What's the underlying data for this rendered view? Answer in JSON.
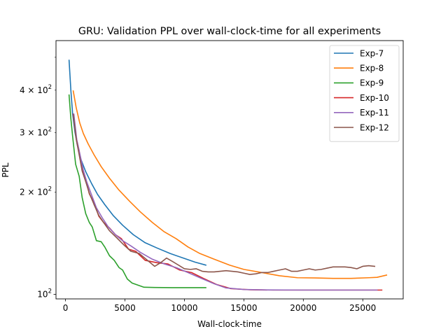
{
  "chart_data": {
    "type": "line",
    "title": "GRU: Validation PPL over wall-clock-time for all experiments",
    "xlabel": "Wall-clock-time",
    "ylabel": "PPL",
    "xlim": [
      -800,
      28400
    ],
    "ylim": [
      97,
      560
    ],
    "yscale": "log",
    "x_ticks": [
      {
        "value": 0,
        "label": "0"
      },
      {
        "value": 5000,
        "label": "5000"
      },
      {
        "value": 10000,
        "label": "10000"
      },
      {
        "value": 15000,
        "label": "15000"
      },
      {
        "value": 20000,
        "label": "20000"
      },
      {
        "value": 25000,
        "label": "25000"
      }
    ],
    "y_ticks": [
      {
        "value": 100,
        "base": "10",
        "exp": "2",
        "major": true
      },
      {
        "value": 200,
        "base": "2 × 10",
        "exp": "2",
        "major": false
      },
      {
        "value": 300,
        "base": "3 × 10",
        "exp": "2",
        "major": false
      },
      {
        "value": 400,
        "base": "4 × 10",
        "exp": "2",
        "major": false
      }
    ],
    "y_minor_unlabeled": [
      500
    ],
    "grid": false,
    "legend_position": "top-right",
    "series": [
      {
        "name": "Exp-7",
        "color": "#1f77b4",
        "x": [
          300,
          450,
          600,
          800,
          1000,
          1300,
          1700,
          2200,
          2700,
          3300,
          4000,
          4800,
          5700,
          6700,
          7700,
          8800,
          9900,
          10900,
          11800
        ],
        "y": [
          490,
          400,
          340,
          300,
          275,
          250,
          230,
          212,
          197,
          184,
          171,
          160,
          150,
          142,
          137,
          132,
          128,
          124.5,
          122
        ]
      },
      {
        "name": "Exp-8",
        "color": "#ff7f0e",
        "x": [
          650,
          900,
          1200,
          1500,
          1900,
          2400,
          3000,
          3700,
          4500,
          5400,
          6300,
          7300,
          8300,
          9300,
          10300,
          11300,
          12500,
          13800,
          15000,
          16500,
          18000,
          19500,
          21000,
          22500,
          24000,
          25500,
          26200,
          27000
        ],
        "y": [
          398,
          355,
          320,
          298,
          278,
          258,
          238,
          220,
          203,
          188,
          175,
          163,
          153,
          146,
          138,
          132,
          127,
          122,
          118.5,
          116,
          113.5,
          112,
          111.8,
          111.5,
          111.5,
          112,
          112.3,
          114
        ]
      },
      {
        "name": "Exp-9",
        "color": "#2ca02c",
        "x": [
          300,
          450,
          600,
          850,
          1150,
          1400,
          1700,
          2000,
          2250,
          2600,
          3000,
          3300,
          3700,
          4100,
          4500,
          4800,
          5200,
          5600,
          6100,
          6600,
          7500,
          9000,
          10500,
          11800
        ],
        "y": [
          387,
          330,
          292,
          242,
          223,
          193,
          173,
          163,
          158,
          144,
          143,
          138,
          130,
          126,
          120,
          118,
          111,
          108,
          106.5,
          105,
          104.8,
          104.7,
          104.7,
          104.7
        ]
      },
      {
        "name": "Exp-10",
        "color": "#d62728",
        "x": [
          650,
          900,
          1150,
          1400,
          1700,
          2000,
          2400,
          2800,
          3200,
          3700,
          4200,
          4700,
          5300,
          5900,
          6700,
          7700,
          8600,
          9600,
          10600,
          11600,
          12700,
          13900,
          15500,
          17500,
          20000,
          23000,
          26600
        ],
        "y": [
          340,
          290,
          265,
          233,
          218,
          198,
          186,
          170,
          163,
          157,
          150,
          146,
          136,
          134,
          126,
          124,
          123,
          118,
          116,
          111.5,
          107,
          104,
          103.2,
          103,
          103,
          103,
          103
        ]
      },
      {
        "name": "Exp-11",
        "color": "#9467bd",
        "x": [
          700,
          950,
          1200,
          1500,
          1800,
          2200,
          2600,
          3100,
          3600,
          4200,
          4800,
          5500,
          6300,
          7300,
          8300,
          9300,
          10300,
          11300,
          12500,
          13500,
          15000,
          17000,
          20000,
          23000,
          26200
        ],
        "y": [
          340,
          285,
          260,
          232,
          214,
          196,
          180,
          168,
          158,
          150,
          144,
          139,
          133,
          127,
          123,
          120,
          116,
          112,
          107.5,
          104.5,
          103.4,
          103.1,
          103,
          103,
          103
        ]
      },
      {
        "name": "Exp-12",
        "color": "#8c564b",
        "x": [
          650,
          900,
          1150,
          1400,
          1700,
          2000,
          2400,
          2800,
          3200,
          3700,
          4300,
          4900,
          5500,
          6200,
          6900,
          7500,
          8000,
          8500,
          9000,
          9500,
          10000,
          10500,
          11000,
          11500,
          12000,
          12500,
          13000,
          13500,
          14000,
          14500,
          15000,
          15500,
          16000,
          16500,
          17000,
          17500,
          18000,
          18500,
          19000,
          19500,
          20000,
          20500,
          21000,
          21500,
          22000,
          22500,
          23000,
          23500,
          24000,
          24500,
          25000,
          25500,
          26000
        ],
        "y": [
          338,
          287,
          258,
          231,
          215,
          199,
          184,
          171,
          163,
          154,
          147,
          140,
          134,
          132,
          126,
          121,
          124,
          128,
          125,
          122,
          119,
          118.5,
          119,
          117,
          116.5,
          116.5,
          117,
          117.5,
          117,
          116.5,
          115.5,
          114.5,
          115,
          116,
          116,
          117,
          118,
          119,
          117,
          117,
          118,
          119,
          118,
          118.5,
          119.5,
          120.5,
          120.5,
          120.5,
          120,
          119,
          121,
          121.5,
          121
        ]
      }
    ]
  }
}
